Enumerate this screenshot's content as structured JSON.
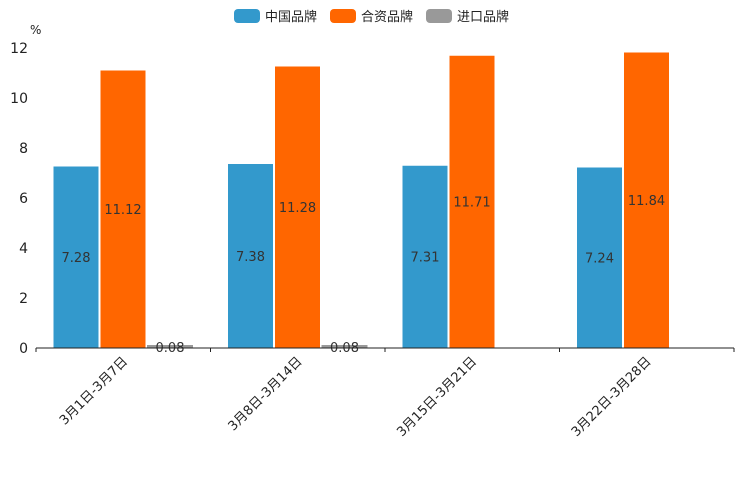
{
  "chart_data": {
    "type": "bar",
    "unit": "%",
    "categories": [
      "3月1日-3月7日",
      "3月8日-3月14日",
      "3月15日-3月21日",
      "3月22日-3月28日"
    ],
    "series": [
      {
        "name": "中国品牌",
        "color": "#3399cc",
        "values": [
          7.28,
          7.38,
          7.31,
          7.24
        ],
        "labels": [
          "7.28",
          "7.38",
          "7.31",
          "7.24"
        ]
      },
      {
        "name": "合资品牌",
        "color": "#ff6600",
        "values": [
          11.12,
          11.28,
          11.71,
          11.84
        ],
        "labels": [
          "11.12",
          "11.28",
          "11.71",
          "11.84"
        ]
      },
      {
        "name": "进口品牌",
        "color": "#999999",
        "values": [
          0.08,
          0.08,
          null,
          null
        ],
        "labels": [
          "0.08",
          "0.08",
          null,
          null
        ]
      }
    ],
    "ylim": [
      0,
      12
    ],
    "yticks": [
      "0",
      "2",
      "4",
      "6",
      "8",
      "10",
      "12"
    ],
    "legend_position": "top-center",
    "grid": false
  }
}
